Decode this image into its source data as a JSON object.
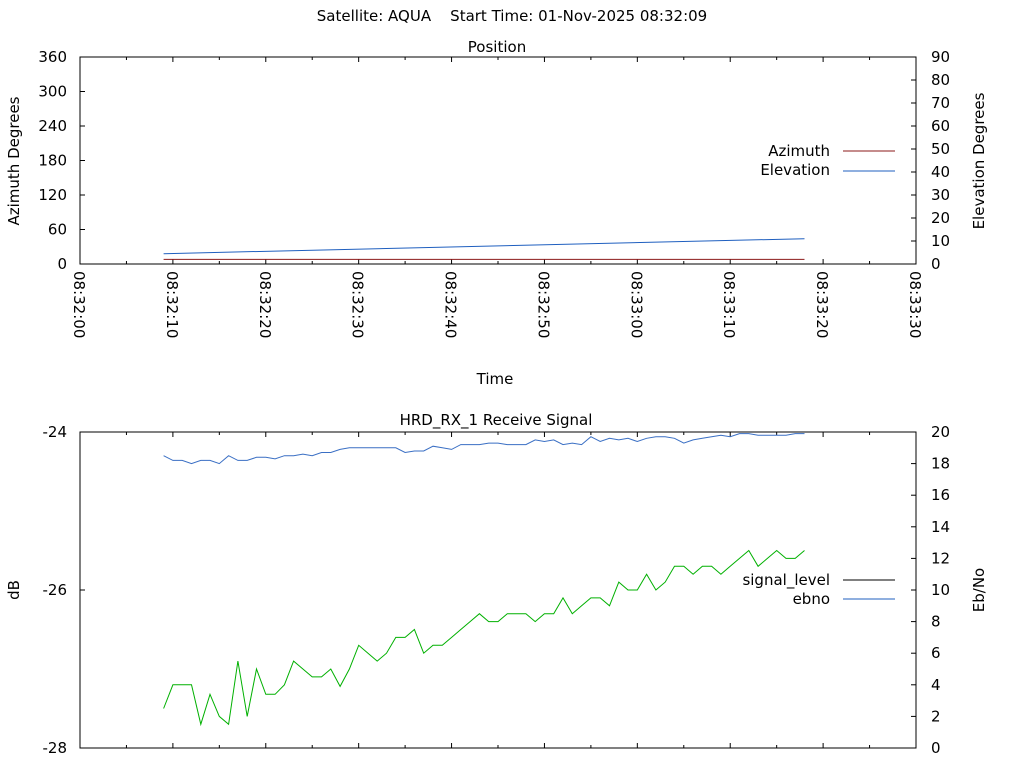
{
  "header": {
    "satellite": "Satellite: AQUA",
    "start_time": "Start Time: 01-Nov-2025 08:32:09"
  },
  "colors": {
    "azimuth": "#8b1a1a",
    "elevation": "#1f5fbf",
    "signal_level": "#000000",
    "ebno_legend": "#1f5fbf",
    "ebno_line_top": "#3a6fc4",
    "ebno_line_bottom": "#00b000"
  },
  "chart_data": [
    {
      "type": "line",
      "title": "Position",
      "xlabel": "Time",
      "ylabel": "Azimuth Degrees",
      "y2label": "Elevation Degrees",
      "x_ticks": [
        "08:32:00",
        "08:32:10",
        "08:32:20",
        "08:32:30",
        "08:32:40",
        "08:32:50",
        "08:33:00",
        "08:33:10",
        "08:33:20",
        "08:33:30"
      ],
      "xlim_seconds": [
        0,
        90
      ],
      "ylim": [
        0,
        360
      ],
      "y_ticks": [
        0,
        60,
        120,
        180,
        240,
        300,
        360
      ],
      "y2lim": [
        0,
        90
      ],
      "y2_ticks": [
        0,
        10,
        20,
        30,
        40,
        50,
        60,
        70,
        80,
        90
      ],
      "legend_position": "right",
      "series": [
        {
          "name": "Azimuth",
          "axis": "y",
          "x": [
            9,
            78
          ],
          "values": [
            8,
            8
          ]
        },
        {
          "name": "Elevation",
          "axis": "y2",
          "x": [
            9,
            78
          ],
          "values": [
            4.5,
            11
          ]
        }
      ]
    },
    {
      "type": "line",
      "title": "HRD_RX_1 Receive Signal",
      "ylabel": "dB",
      "y2label": "Eb/No",
      "xlim_seconds": [
        0,
        90
      ],
      "ylim": [
        -28,
        -24
      ],
      "y_ticks": [
        -28,
        -26,
        -24
      ],
      "y2lim": [
        0,
        20
      ],
      "y2_ticks": [
        0,
        2,
        4,
        6,
        8,
        10,
        12,
        14,
        16,
        18,
        20
      ],
      "legend_position": "right",
      "legend": [
        "signal_level",
        "ebno"
      ],
      "series": [
        {
          "name": "ebno",
          "axis": "y2",
          "x": [
            9,
            10,
            11,
            12,
            13,
            14,
            15,
            16,
            17,
            18,
            19,
            20,
            21,
            22,
            23,
            24,
            25,
            26,
            27,
            28,
            29,
            30,
            31,
            32,
            33,
            34,
            35,
            36,
            37,
            38,
            39,
            40,
            41,
            42,
            43,
            44,
            45,
            46,
            47,
            48,
            49,
            50,
            51,
            52,
            53,
            54,
            55,
            56,
            57,
            58,
            59,
            60,
            61,
            62,
            63,
            64,
            65,
            66,
            67,
            68,
            69,
            70,
            71,
            72,
            73,
            74,
            75,
            76,
            77,
            78
          ],
          "values": [
            18.5,
            18.2,
            18.2,
            18.0,
            18.2,
            18.2,
            18.0,
            18.5,
            18.2,
            18.2,
            18.4,
            18.4,
            18.3,
            18.5,
            18.5,
            18.6,
            18.5,
            18.7,
            18.7,
            18.9,
            19.0,
            19.0,
            19.0,
            19.0,
            19.0,
            19.0,
            18.7,
            18.8,
            18.8,
            19.1,
            19.0,
            18.9,
            19.2,
            19.2,
            19.2,
            19.3,
            19.3,
            19.2,
            19.2,
            19.2,
            19.5,
            19.4,
            19.5,
            19.2,
            19.3,
            19.2,
            19.7,
            19.4,
            19.6,
            19.5,
            19.6,
            19.4,
            19.6,
            19.7,
            19.7,
            19.6,
            19.3,
            19.5,
            19.6,
            19.7,
            19.8,
            19.7,
            19.9,
            19.9,
            19.8,
            19.8,
            19.8,
            19.8,
            19.9,
            19.9
          ]
        },
        {
          "name": "",
          "axis": "y2",
          "x": [
            9,
            10,
            11,
            12,
            13,
            14,
            15,
            16,
            17,
            18,
            19,
            20,
            21,
            22,
            23,
            24,
            25,
            26,
            27,
            28,
            29,
            30,
            31,
            32,
            33,
            34,
            35,
            36,
            37,
            38,
            39,
            40,
            41,
            42,
            43,
            44,
            45,
            46,
            47,
            48,
            49,
            50,
            51,
            52,
            53,
            54,
            55,
            56,
            57,
            58,
            59,
            60,
            61,
            62,
            63,
            64,
            65,
            66,
            67,
            68,
            69,
            70,
            71,
            72,
            73,
            74,
            75,
            76,
            77,
            78
          ],
          "values": [
            2.5,
            4.0,
            4.0,
            4.0,
            1.5,
            3.4,
            2.0,
            1.5,
            5.5,
            2.0,
            5.0,
            3.4,
            3.4,
            4.0,
            5.5,
            5.0,
            4.5,
            4.5,
            5.0,
            3.9,
            5.0,
            6.5,
            6.0,
            5.5,
            6.0,
            7.0,
            7.0,
            7.5,
            6.0,
            6.5,
            6.5,
            7.0,
            7.5,
            8.0,
            8.5,
            8.0,
            8.0,
            8.5,
            8.5,
            8.5,
            8.0,
            8.5,
            8.5,
            9.5,
            8.5,
            9.0,
            9.5,
            9.5,
            9.0,
            10.5,
            10.0,
            10.0,
            11.0,
            10.0,
            10.5,
            11.5,
            11.5,
            11.0,
            11.5,
            11.5,
            11.0,
            11.5,
            12.0,
            12.5,
            11.5,
            12.0,
            12.5,
            12.0,
            12.0,
            12.5
          ]
        }
      ]
    }
  ]
}
